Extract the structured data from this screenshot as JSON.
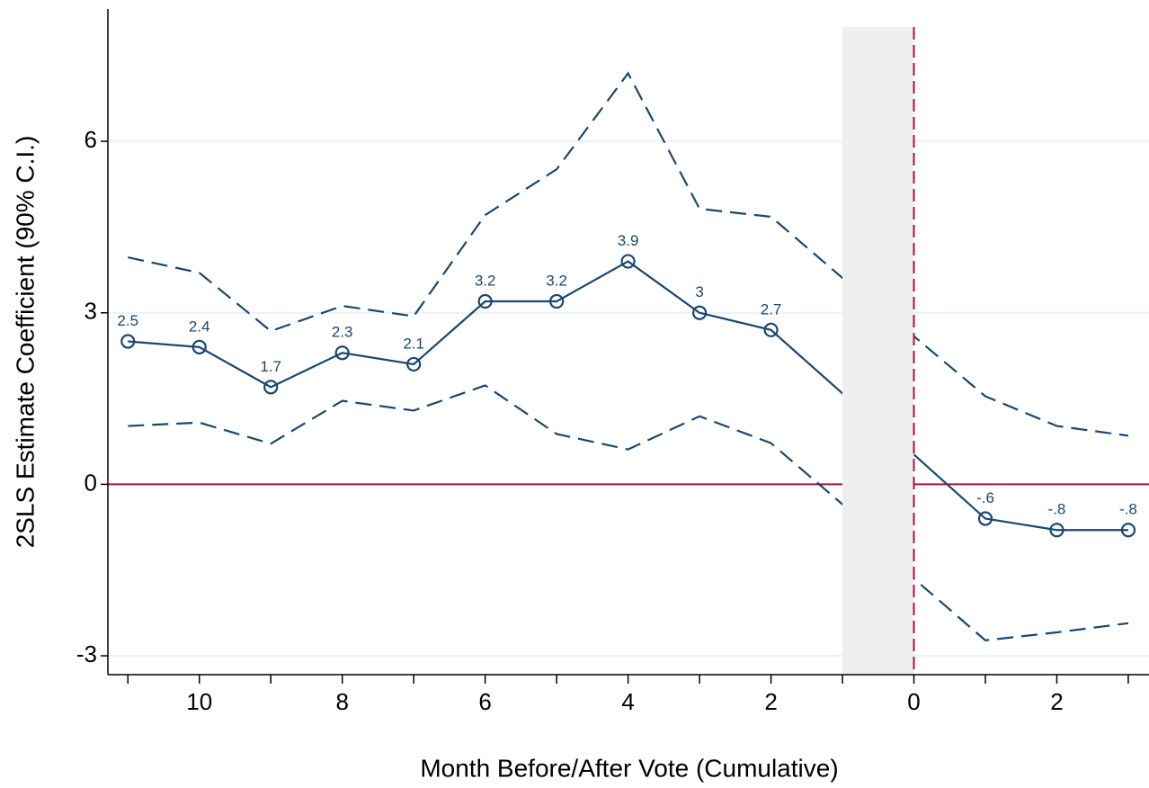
{
  "chart_data": {
    "type": "line",
    "xlabel": "Month Before/After Vote (Cumulative)",
    "ylabel": "2SLS Estimate Coefficient (90% C.I.)",
    "x": [
      -11,
      -10,
      -9,
      -8,
      -7,
      -6,
      -5,
      -4,
      -3,
      -2,
      -1,
      0,
      1,
      2,
      3
    ],
    "series": [
      {
        "color": "#1a476f",
        "dashed": false,
        "markers": true,
        "values": [
          2.5,
          2.4,
          1.7,
          2.3,
          2.1,
          3.2,
          3.2,
          3.9,
          3.0,
          2.7,
          1.59,
          0.52,
          -0.6,
          -0.8,
          -0.8
        ],
        "value_labels": [
          "2.5",
          "2.4",
          "1.7",
          "2.3",
          "2.1",
          "3.2",
          "3.2",
          "3.9",
          "3",
          "2.7",
          null,
          null,
          "-.6",
          "-.8",
          "-.8"
        ]
      },
      {
        "color": "#1a476f",
        "dashed": true,
        "markers": false,
        "values": [
          3.97,
          3.7,
          2.68,
          3.12,
          2.94,
          4.71,
          5.51,
          7.19,
          4.82,
          4.68,
          3.61,
          2.59,
          1.54,
          1.02,
          0.85
        ]
      },
      {
        "color": "#1a476f",
        "dashed": true,
        "markers": false,
        "values": [
          1.02,
          1.08,
          0.71,
          1.46,
          1.29,
          1.73,
          0.88,
          0.61,
          1.19,
          0.72,
          -0.35,
          -1.65,
          -2.73,
          -2.59,
          -2.43
        ]
      }
    ],
    "xlim": [
      -11.28,
      3.29
    ],
    "ylim": [
      -3.33,
      8
    ],
    "xticks": [
      {
        "value": -10,
        "label": "10"
      },
      {
        "value": -8,
        "label": "8"
      },
      {
        "value": -6,
        "label": "6"
      },
      {
        "value": -4,
        "label": "4"
      },
      {
        "value": -2,
        "label": "2"
      },
      0,
      2
    ],
    "xminorticks": [
      -11,
      -9,
      -7,
      -5,
      -3,
      -1,
      1,
      3
    ],
    "yticks": [
      -3,
      0,
      3,
      6
    ],
    "grid": true,
    "hline": 0,
    "vline": 0,
    "ref_color": "#b0103c",
    "shade": [
      -1,
      0
    ],
    "shade_color": "#efefef"
  }
}
